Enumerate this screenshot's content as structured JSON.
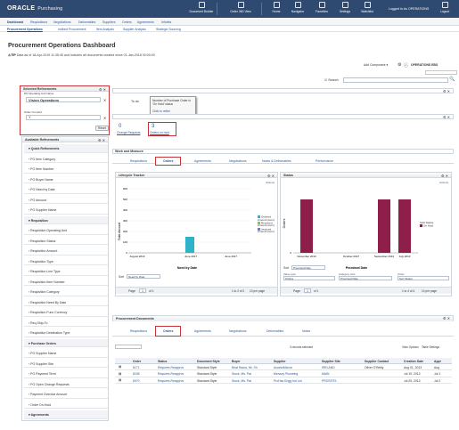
{
  "header": {
    "brand": "ORACLE",
    "product": "Purchasing",
    "buttons": [
      "Document Builder",
      "Order 360 View",
      "Home",
      "Navigator",
      "Favorites",
      "Settings",
      "Watchlist",
      "Logout"
    ],
    "user": "Logged In As OPERATIONS"
  },
  "top_tabs": [
    "Dashboard",
    "Requisitions",
    "Negotiations",
    "Deliverables",
    "Suppliers",
    "Orders",
    "Agreements",
    "Infolets"
  ],
  "sub_tabs": [
    "Procurement Operations",
    "Indirect Procurement",
    "Item Analysis",
    "Supplier Analysis",
    "Strategic Sourcing"
  ],
  "page": {
    "title": "Procurement Operations Dashboard",
    "tip_label": "TIP",
    "tip_text": "Data as of 18-Apr-2019 11:35:45 and includes all documents created since 01-Jan-2018 00:00:00",
    "add_component": "Add Component",
    "operations_label": "OPERATIONS EBS",
    "search_label": "Search",
    "search_placeholder": "",
    "search_value": ""
  },
  "selected_refinements": {
    "title": "Selected Refinements",
    "ou_label": "PO Operating Unit Name",
    "chip": "Vision Operations",
    "onhold_label": "Order On Hold",
    "onhold_value": "Y",
    "reset": "Reset"
  },
  "available_refinements": {
    "title": "Available Refinements",
    "rows": [
      {
        "label": "Quick Refinements",
        "group": true
      },
      {
        "label": "PO Item Category",
        "group": false
      },
      {
        "label": "PO Item Number",
        "group": false
      },
      {
        "label": "PO Buyer Name",
        "group": false
      },
      {
        "label": "PO Need by Date",
        "group": false
      },
      {
        "label": "PO Amount",
        "group": false
      },
      {
        "label": "PO Supplier Name",
        "group": false
      },
      {
        "label": "Requisition",
        "group": true
      },
      {
        "label": "Requisition Operating Unit",
        "group": false
      },
      {
        "label": "Requisition Status",
        "group": false
      },
      {
        "label": "Requisition Amount",
        "group": false
      },
      {
        "label": "Requisition Type",
        "group": false
      },
      {
        "label": "Requisition Line Type",
        "group": false
      },
      {
        "label": "Requisition Item Number",
        "group": false
      },
      {
        "label": "Requisition Category",
        "group": false
      },
      {
        "label": "Requisition Need By Date",
        "group": false
      },
      {
        "label": "Requisition Func Currency",
        "group": false
      },
      {
        "label": "Req Ship-To",
        "group": false
      },
      {
        "label": "Requisition Destination Type",
        "group": false
      },
      {
        "label": "Purchase Orders",
        "group": true
      },
      {
        "label": "PO Supplier Name",
        "group": false
      },
      {
        "label": "PO Supplier Site",
        "group": false
      },
      {
        "label": "PO Payment Term",
        "group": false
      },
      {
        "label": "PO Open Change Requests",
        "group": false
      },
      {
        "label": "Payment Overdue Amount",
        "group": false
      },
      {
        "label": "Order On-Hold",
        "group": false
      },
      {
        "label": "Agreements",
        "group": true
      }
    ]
  },
  "metrics": {
    "to_do": "To do",
    "tooltip_title": "Number of Purchase Order in 'On Hold' status",
    "tooltip_link": "Click to refine",
    "change_requests_value": "0",
    "change_requests_label": "Change Requests",
    "on_hold_value": "3",
    "on_hold_label": "Orders on hold"
  },
  "work_measure": {
    "title": "Work and Measure",
    "tabs": [
      "Requisitions",
      "Orders",
      "Agreements",
      "Negotiations",
      "Notes & Deliverables",
      "Performance"
    ],
    "active_tab": "Orders"
  },
  "lifecycle": {
    "title": "Lifecycle Tracker",
    "actions": "Actions",
    "sort_label": "Sort",
    "sort_value": "Need by Date",
    "page_label": "Page",
    "page_value": "1",
    "of_label": "of 1",
    "range_text": "1 to 2 of 2",
    "page_size": "10 per page"
  },
  "status": {
    "title": "Status",
    "actions": "Actions",
    "sort_label": "Sort",
    "sort_value": "Promised Date",
    "filter_headers": [
      "Value type",
      "Category axis",
      "Order"
    ],
    "filter_values": [
      "Orders",
      "Promised Date",
      "Sort Status"
    ],
    "page_label": "Page",
    "page_value": "1",
    "of_label": "of 1",
    "range_text": "1 to 4 of 4",
    "page_size": "10 per page"
  },
  "chart_data": [
    {
      "type": "bar",
      "title": "Lifecycle Tracker",
      "xlabel": "Need by Date",
      "ylabel": "Total Amount",
      "categories": [
        "August 2013",
        "",
        "June 2017"
      ],
      "series": [
        {
          "name": "Ordered Amount (sum)",
          "values": [
            0,
            150,
            0
          ],
          "color": "#2fb3c8"
        },
        {
          "name": "Received Amount (sum)",
          "values": [
            0,
            0,
            0
          ],
          "color": "#8bc34a"
        },
        {
          "name": "Invoiced Amount (sum)",
          "values": [
            0,
            0,
            0
          ],
          "color": "#6d7fcc"
        }
      ],
      "tick_labels_x": [
        "August 2013",
        "June 2017",
        "June 2017"
      ],
      "ylim": [
        0,
        600
      ],
      "yticks": [
        "0",
        "100",
        "200",
        "300",
        "400",
        "500",
        "600"
      ]
    },
    {
      "type": "bar",
      "title": "Status",
      "xlabel": "Promised Date",
      "ylabel": "Orders",
      "categories": [
        "November 2013",
        "October 2017",
        "September 2013",
        "July 2013"
      ],
      "series": [
        {
          "name": "On Hold",
          "values": [
            1,
            0,
            1,
            1
          ],
          "color": "#8e1f4a"
        }
      ],
      "legend_title": "Split Status",
      "ylim": [
        0,
        1
      ]
    }
  ],
  "procurement_docs": {
    "title": "Procurement Documents",
    "tabs": [
      "Requisitions",
      "Orders",
      "Agreements",
      "Negotiations",
      "Deliverables",
      "Notes"
    ],
    "active_tab": "Orders",
    "records_text": "3 records selected",
    "view_options": "View Options",
    "table_settings": "Table Settings",
    "columns": [
      "Order",
      "Status",
      "Document Style",
      "Buyer",
      "Supplier",
      "Supplier Site",
      "Supplier Contact",
      "Creation Date",
      "Appr"
    ],
    "rows": [
      [
        "6171",
        "Requires Reapprov",
        "Standard Style",
        "Bhat Rama, Mr. Sh",
        "AccessMicron",
        "IRELAND",
        "Oliver O'Reilly",
        "Aug 01, 2013",
        "Aug"
      ],
      [
        "6155",
        "Requires Reapprov",
        "Standard Style",
        "Stock, Ms. Pat",
        "Mercury Plumbing",
        "MAIN",
        "",
        "Jul 19, 2013",
        "Jul 1"
      ],
      [
        "6070",
        "Requires Reapprov",
        "Standard Style",
        "Stock, Ms. Pat",
        "ProHac Engg Ind Ltd",
        "PROSITE1",
        "",
        "Jul 25, 2013",
        "Jul 2"
      ]
    ]
  }
}
